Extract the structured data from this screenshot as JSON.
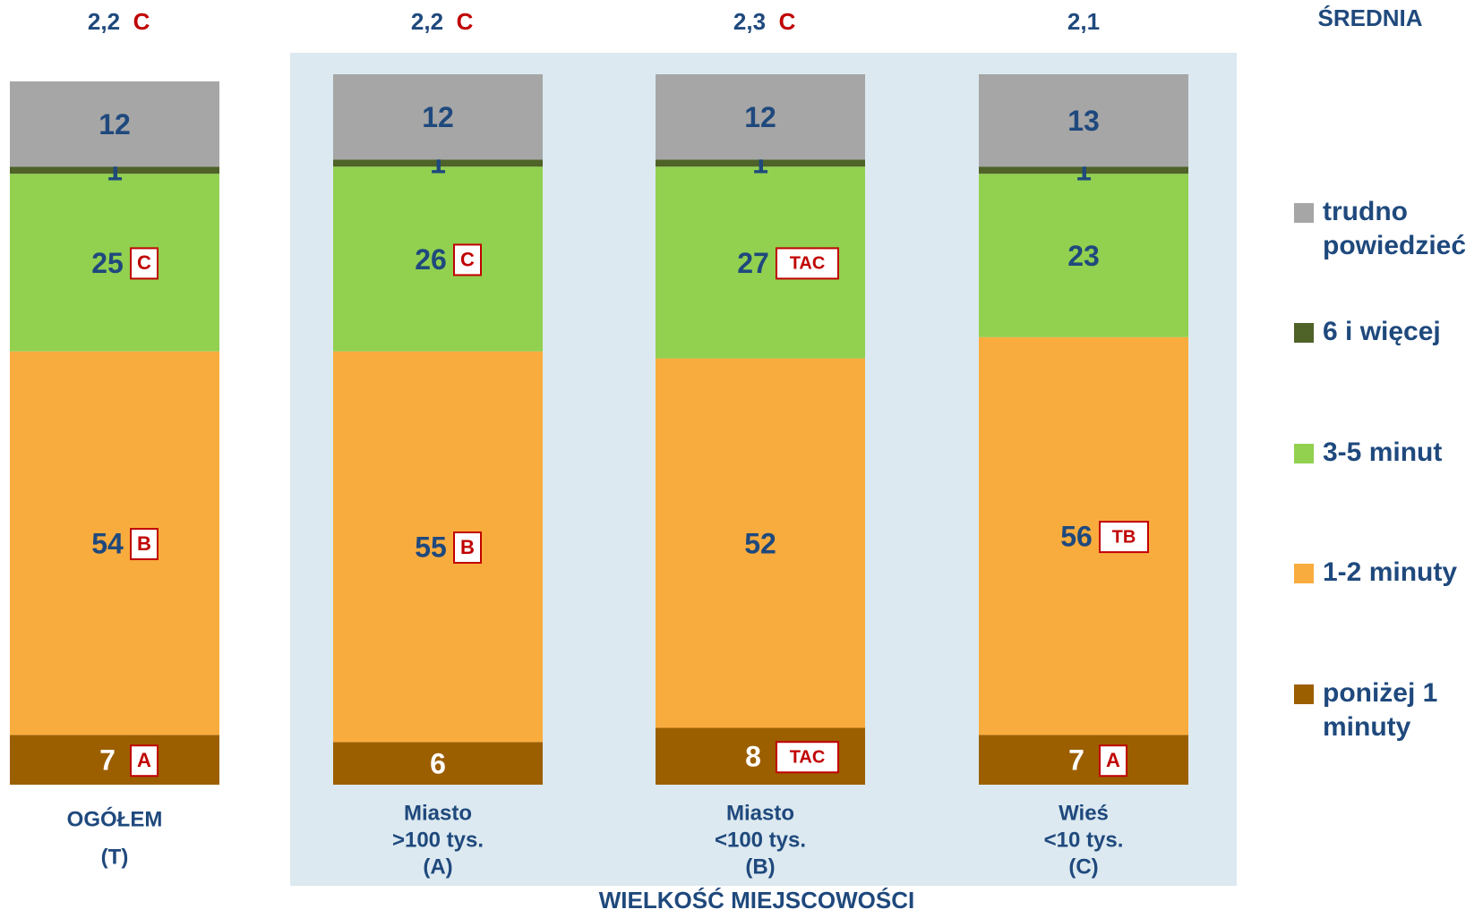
{
  "chart_data": {
    "type": "stacked_bar",
    "categories": [
      [
        "OGÓŁEM",
        "(T)"
      ],
      [
        "Miasto",
        ">100 tys.",
        "(A)"
      ],
      [
        "Miasto",
        "<100 tys.",
        "(B)"
      ],
      [
        "Wieś",
        "<10 tys.",
        "(C)"
      ]
    ],
    "ylim": [
      0,
      100
    ],
    "series": [
      {
        "name": "poniżej 1 minuty",
        "color": "#9c5f00",
        "label_color": "#ffffff",
        "values": [
          7,
          6,
          8,
          7
        ],
        "markers": [
          "A",
          null,
          "TAC",
          "A"
        ]
      },
      {
        "name": "1-2 minuty",
        "color": "#f9ac3e",
        "label_color": "#1f497d",
        "values": [
          54,
          55,
          52,
          56
        ],
        "markers": [
          "B",
          "B",
          null,
          "TB"
        ]
      },
      {
        "name": "3-5 minut",
        "color": "#92d050",
        "label_color": "#1f497d",
        "values": [
          25,
          26,
          27,
          23
        ],
        "markers": [
          "C",
          "C",
          "TAC",
          null
        ]
      },
      {
        "name": "6 i więcej",
        "color": "#4f6228",
        "label_color": "#1f497d",
        "values": [
          1,
          1,
          1,
          1
        ],
        "markers": [
          null,
          null,
          null,
          null
        ]
      },
      {
        "name": "trudno powiedzieć",
        "color": "#a6a6a6",
        "label_color": "#1f497d",
        "values": [
          12,
          12,
          12,
          13
        ],
        "markers": [
          null,
          null,
          null,
          null
        ]
      }
    ],
    "average_label": "ŚREDNIA",
    "averages": [
      "2,2",
      "2,2",
      "2,3",
      "2,1"
    ],
    "average_markers": [
      "C",
      "C",
      "C",
      null
    ],
    "group_label": "WIELKOŚĆ MIEJSCOWOŚCI"
  }
}
